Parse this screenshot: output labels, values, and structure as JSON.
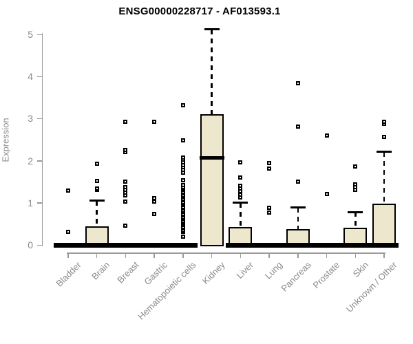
{
  "title": "ENSG00000228717 - AF013593.1",
  "colors": {
    "background": "#ffffff",
    "box_fill": "#ede8cd",
    "box_border": "#000000",
    "axis_line": "#999999",
    "axis_text": "#8a8a8a",
    "title_text": "#000000"
  },
  "chart_data": {
    "type": "boxplot",
    "title": "ENSG00000228717 - AF013593.1",
    "xlabel": "",
    "ylabel": "Expression",
    "ylim": [
      0,
      5.2
    ],
    "yticks": [
      0,
      1,
      2,
      3,
      4,
      5
    ],
    "grid": false,
    "legend": "none",
    "categories": [
      "Bladder",
      "Brain",
      "Breast",
      "Gastric",
      "Hematopoietic cells",
      "Kidney",
      "Liver",
      "Lung",
      "Pancreas",
      "Prostate",
      "Skin",
      "Unknown / Other"
    ],
    "series": [
      {
        "name": "Bladder",
        "q1": 0,
        "median": 0,
        "q3": 0,
        "whisker_low": 0,
        "whisker_high": 0,
        "outliers": [
          0.31,
          1.29
        ]
      },
      {
        "name": "Brain",
        "q1": 0,
        "median": 0,
        "q3": 0.44,
        "whisker_low": 0,
        "whisker_high": 1.05,
        "outliers": [
          1.3,
          1.34,
          1.52,
          1.93
        ]
      },
      {
        "name": "Breast",
        "q1": 0,
        "median": 0,
        "q3": 0,
        "whisker_low": 0,
        "whisker_high": 0,
        "outliers": [
          0.46,
          1.03,
          1.18,
          1.24,
          1.3,
          1.37,
          1.5,
          2.2,
          2.26,
          2.92
        ]
      },
      {
        "name": "Gastric",
        "q1": 0,
        "median": 0,
        "q3": 0,
        "whisker_low": 0,
        "whisker_high": 0,
        "outliers": [
          0.74,
          1.03,
          1.11,
          2.93
        ]
      },
      {
        "name": "Hematopoietic cells",
        "q1": 0,
        "median": 0,
        "q3": 0,
        "whisker_low": 0,
        "whisker_high": 0,
        "outliers": [
          0.2,
          0.31,
          0.35,
          0.39,
          0.43,
          0.47,
          0.5,
          0.54,
          0.58,
          0.62,
          0.66,
          0.7,
          0.74,
          0.78,
          0.82,
          0.86,
          0.9,
          0.94,
          0.98,
          1.02,
          1.06,
          1.1,
          1.14,
          1.18,
          1.22,
          1.26,
          1.3,
          1.34,
          1.38,
          1.42,
          1.54,
          1.72,
          1.78,
          1.84,
          1.9,
          1.96,
          2.02,
          2.07,
          2.48,
          3.32
        ]
      },
      {
        "name": "Kidney",
        "q1": 0,
        "median": 2.07,
        "q3": 3.1,
        "whisker_low": 0,
        "whisker_high": 5.12,
        "outliers": []
      },
      {
        "name": "Liver",
        "q1": 0,
        "median": 0,
        "q3": 0.42,
        "whisker_low": 0,
        "whisker_high": 1.0,
        "outliers": [
          1.13,
          1.2,
          1.27,
          1.34,
          1.41,
          1.6,
          1.96
        ]
      },
      {
        "name": "Lung",
        "q1": 0,
        "median": 0,
        "q3": 0,
        "whisker_low": 0,
        "whisker_high": 0,
        "outliers": [
          0.77,
          0.88,
          1.81,
          1.94
        ]
      },
      {
        "name": "Pancreas",
        "q1": 0,
        "median": 0,
        "q3": 0.37,
        "whisker_low": 0,
        "whisker_high": 0.89,
        "outliers": [
          1.5,
          2.81,
          3.84
        ]
      },
      {
        "name": "Prostate",
        "q1": 0,
        "median": 0,
        "q3": 0,
        "whisker_low": 0,
        "whisker_high": 0,
        "outliers": [
          1.21,
          2.6
        ]
      },
      {
        "name": "Skin",
        "q1": 0,
        "median": 0,
        "q3": 0.41,
        "whisker_low": 0,
        "whisker_high": 0.78,
        "outliers": [
          1.3,
          1.37,
          1.43,
          1.86
        ]
      },
      {
        "name": "Unknown / Other",
        "q1": 0,
        "median": 0,
        "q3": 0.98,
        "whisker_low": 0,
        "whisker_high": 2.21,
        "outliers": [
          2.56,
          2.88,
          2.92
        ]
      }
    ]
  }
}
